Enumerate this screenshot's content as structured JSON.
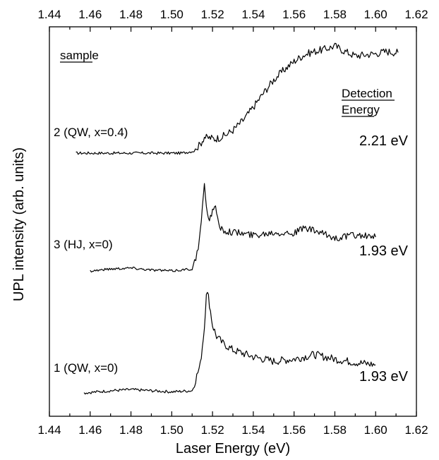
{
  "chart_data": {
    "type": "line",
    "xlabel": "Laser Energy (eV)",
    "ylabel": "UPL intensity (arb. units)",
    "xlim": [
      1.44,
      1.62
    ],
    "x_ticks": [
      "1.44",
      "1.46",
      "1.48",
      "1.50",
      "1.52",
      "1.54",
      "1.56",
      "1.58",
      "1.60",
      "1.62"
    ],
    "y_ticks_shown": false,
    "grid": false,
    "sample_heading": "sample",
    "detection_heading": [
      "Detection",
      "Energy"
    ],
    "series": [
      {
        "name": "2 (QW, x=0.4)",
        "detection_energy": "2.21 eV",
        "x": [
          1.453,
          1.465,
          1.48,
          1.495,
          1.505,
          1.511,
          1.514,
          1.516,
          1.517,
          1.519,
          1.521,
          1.523,
          1.526,
          1.53,
          1.535,
          1.54,
          1.545,
          1.55,
          1.555,
          1.56,
          1.565,
          1.57,
          1.575,
          1.58,
          1.585,
          1.59,
          1.595,
          1.6,
          1.605,
          1.611
        ],
        "y": [
          0.0,
          0.0,
          0.0,
          0.0,
          0.0,
          0.02,
          0.08,
          0.15,
          0.14,
          0.14,
          0.13,
          0.14,
          0.16,
          0.21,
          0.3,
          0.42,
          0.55,
          0.67,
          0.76,
          0.84,
          0.9,
          0.93,
          0.95,
          0.98,
          0.93,
          0.89,
          0.9,
          0.91,
          0.93,
          0.92
        ]
      },
      {
        "name": "3 (HJ, x=0)",
        "detection_energy": "1.93 eV",
        "x": [
          1.46,
          1.47,
          1.48,
          1.49,
          1.5,
          1.51,
          1.513,
          1.515,
          1.516,
          1.517,
          1.518,
          1.52,
          1.521,
          1.522,
          1.523,
          1.525,
          1.53,
          1.54,
          1.55,
          1.56,
          1.565,
          1.57,
          1.58,
          1.59,
          1.6
        ],
        "y": [
          0.0,
          0.02,
          0.03,
          0.01,
          0.0,
          0.02,
          0.2,
          0.6,
          0.82,
          0.65,
          0.5,
          0.58,
          0.66,
          0.55,
          0.45,
          0.4,
          0.38,
          0.35,
          0.38,
          0.37,
          0.42,
          0.39,
          0.32,
          0.35,
          0.33
        ]
      },
      {
        "name": "1 (QW, x=0)",
        "detection_energy": "1.93 eV",
        "x": [
          1.457,
          1.47,
          1.48,
          1.49,
          1.5,
          1.51,
          1.514,
          1.516,
          1.517,
          1.518,
          1.52,
          1.522,
          1.525,
          1.53,
          1.54,
          1.55,
          1.56,
          1.57,
          1.58,
          1.59,
          1.6
        ],
        "y": [
          0.0,
          0.02,
          0.03,
          0.02,
          0.01,
          0.02,
          0.25,
          0.58,
          0.9,
          0.85,
          0.6,
          0.5,
          0.44,
          0.38,
          0.32,
          0.28,
          0.3,
          0.34,
          0.3,
          0.27,
          0.25
        ]
      }
    ]
  }
}
